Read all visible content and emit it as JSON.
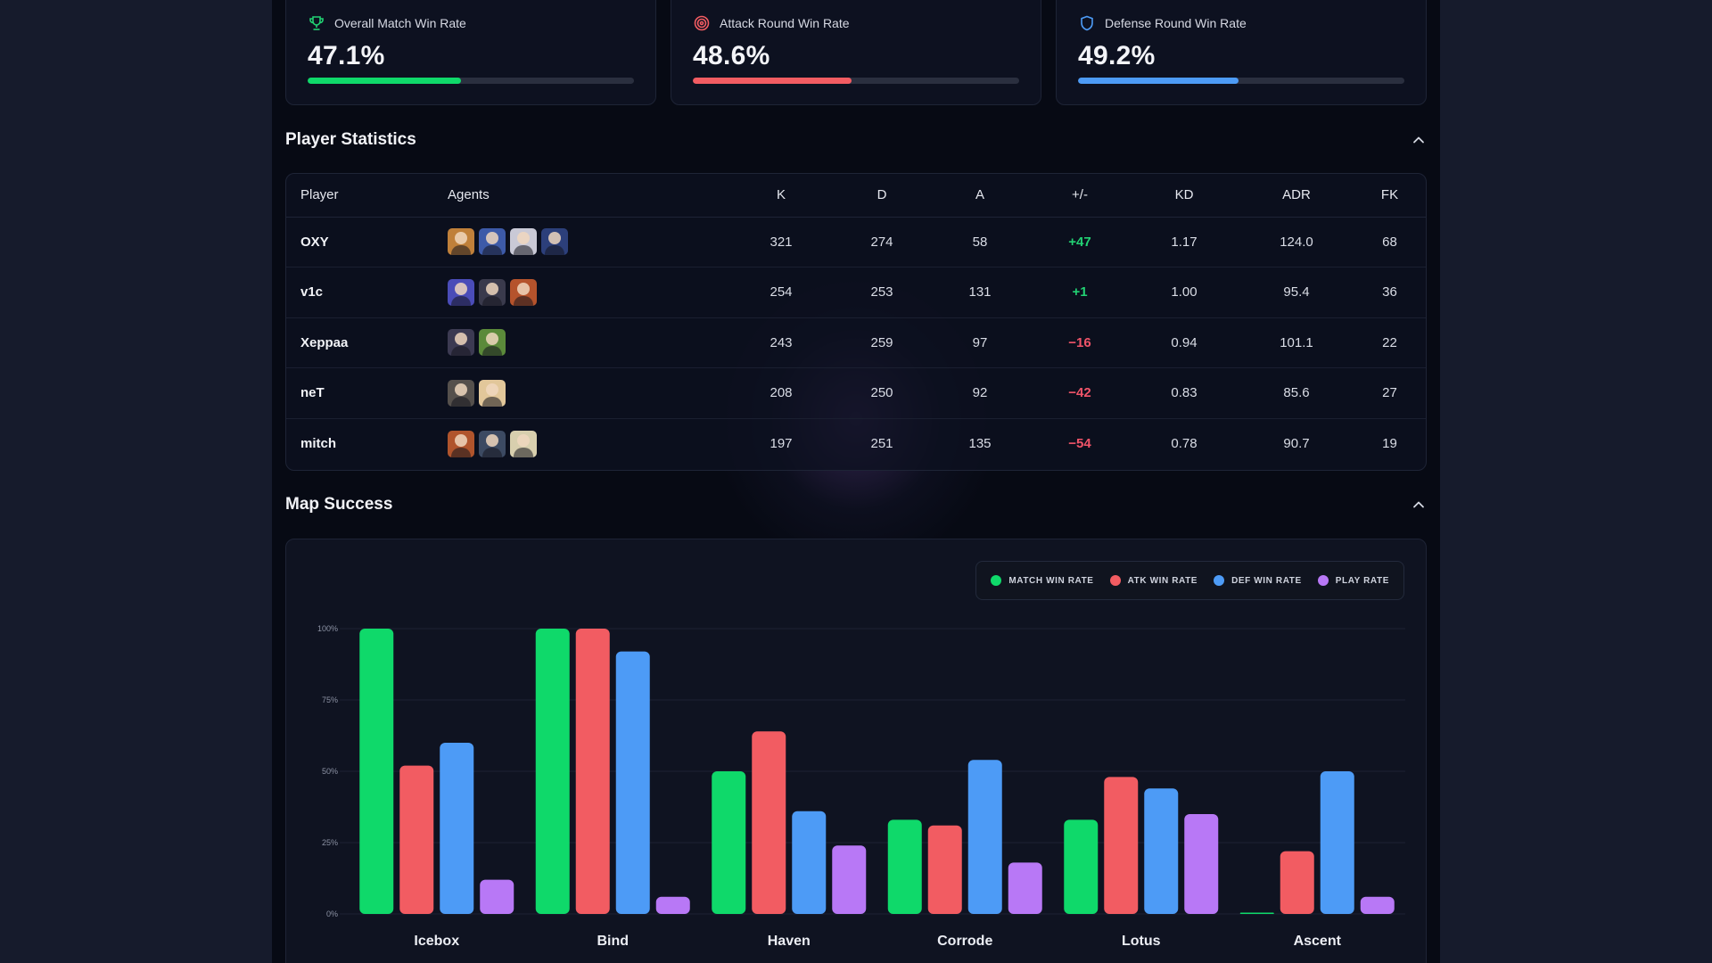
{
  "cards": [
    {
      "title": "Overall Match Win Rate",
      "value": "47.1%",
      "fraction": 0.471,
      "color": "#0fd96a",
      "icon": "trophy-icon"
    },
    {
      "title": "Attack Round Win Rate",
      "value": "48.6%",
      "fraction": 0.486,
      "color": "#f25c62",
      "icon": "target-icon"
    },
    {
      "title": "Defense Round Win Rate",
      "value": "49.2%",
      "fraction": 0.492,
      "color": "#4d9bf6",
      "icon": "shield-icon"
    }
  ],
  "player_stats": {
    "title": "Player Statistics",
    "headers": [
      "Player",
      "Agents",
      "K",
      "D",
      "A",
      "+/-",
      "KD",
      "ADR",
      "FK"
    ],
    "rows": [
      {
        "player": "OXY",
        "agents": 4,
        "k": "321",
        "d": "274",
        "a": "58",
        "pm": "+47",
        "kd": "1.17",
        "adr": "124.0",
        "fk": "68"
      },
      {
        "player": "v1c",
        "agents": 3,
        "k": "254",
        "d": "253",
        "a": "131",
        "pm": "+1",
        "kd": "1.00",
        "adr": "95.4",
        "fk": "36"
      },
      {
        "player": "Xeppaa",
        "agents": 2,
        "k": "243",
        "d": "259",
        "a": "97",
        "pm": "−16",
        "kd": "0.94",
        "adr": "101.1",
        "fk": "22"
      },
      {
        "player": "neT",
        "agents": 2,
        "k": "208",
        "d": "250",
        "a": "92",
        "pm": "−42",
        "kd": "0.83",
        "adr": "85.6",
        "fk": "27"
      },
      {
        "player": "mitch",
        "agents": 3,
        "k": "197",
        "d": "251",
        "a": "135",
        "pm": "−54",
        "kd": "0.78",
        "adr": "90.7",
        "fk": "19"
      }
    ]
  },
  "map_success": {
    "title": "Map Success"
  },
  "chart_data": {
    "type": "bar",
    "categories": [
      "Icebox",
      "Bind",
      "Haven",
      "Corrode",
      "Lotus",
      "Ascent"
    ],
    "series": [
      {
        "name": "MATCH WIN RATE",
        "color": "#0fd96a",
        "values": [
          100,
          100,
          50,
          33,
          33,
          0
        ]
      },
      {
        "name": "ATK WIN RATE",
        "color": "#f25c62",
        "values": [
          52,
          100,
          64,
          31,
          48,
          22
        ]
      },
      {
        "name": "DEF WIN RATE",
        "color": "#4d9bf6",
        "values": [
          60,
          92,
          36,
          54,
          44,
          50
        ]
      },
      {
        "name": "PLAY RATE",
        "color": "#b878f6",
        "values": [
          12,
          6,
          24,
          18,
          35,
          6
        ]
      }
    ],
    "yticks": [
      "0%",
      "25%",
      "50%",
      "75%",
      "100%"
    ],
    "ylim": [
      0,
      100
    ],
    "legend_position": "top-right",
    "grid": true
  }
}
